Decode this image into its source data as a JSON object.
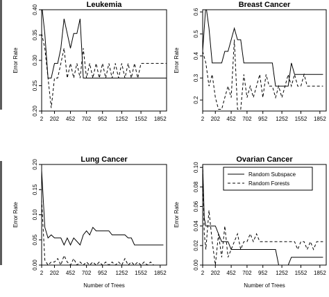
{
  "chart_data": [
    {
      "type": "line",
      "title": "Leukemia",
      "xlabel": "",
      "ylabel": "Error Rate",
      "xlim": [
        2,
        1952
      ],
      "ylim": [
        0.2,
        0.4
      ],
      "xticks": [
        2,
        202,
        452,
        702,
        952,
        1252,
        1552,
        1852
      ],
      "yticks": [
        0.2,
        0.25,
        0.3,
        0.35,
        0.4
      ],
      "ytick_labels": [
        "0.20",
        "0.25",
        "0.30",
        "0.35",
        "0.40"
      ],
      "series": [
        {
          "style": "solid",
          "points": [
            [
              2,
              0.412
            ],
            [
              52,
              0.352
            ],
            [
              102,
              0.265
            ],
            [
              152,
              0.265
            ],
            [
              202,
              0.294
            ],
            [
              252,
              0.294
            ],
            [
              302,
              0.324
            ],
            [
              352,
              0.382
            ],
            [
              402,
              0.353
            ],
            [
              452,
              0.324
            ],
            [
              502,
              0.353
            ],
            [
              552,
              0.353
            ],
            [
              602,
              0.382
            ],
            [
              652,
              0.265
            ],
            [
              702,
              0.265
            ],
            [
              1952,
              0.265
            ]
          ]
        },
        {
          "style": "dashed",
          "points": [
            [
              2,
              0.353
            ],
            [
              52,
              0.324
            ],
            [
              102,
              0.265
            ],
            [
              152,
              0.206
            ],
            [
              202,
              0.265
            ],
            [
              252,
              0.265
            ],
            [
              302,
              0.294
            ],
            [
              352,
              0.324
            ],
            [
              402,
              0.265
            ],
            [
              452,
              0.294
            ],
            [
              502,
              0.265
            ],
            [
              552,
              0.294
            ],
            [
              602,
              0.265
            ],
            [
              652,
              0.324
            ],
            [
              702,
              0.265
            ],
            [
              752,
              0.294
            ],
            [
              802,
              0.265
            ],
            [
              852,
              0.294
            ],
            [
              902,
              0.265
            ],
            [
              952,
              0.294
            ],
            [
              1002,
              0.265
            ],
            [
              1052,
              0.294
            ],
            [
              1102,
              0.265
            ],
            [
              1152,
              0.294
            ],
            [
              1202,
              0.265
            ],
            [
              1252,
              0.294
            ],
            [
              1302,
              0.265
            ],
            [
              1352,
              0.294
            ],
            [
              1402,
              0.265
            ],
            [
              1452,
              0.294
            ],
            [
              1502,
              0.265
            ],
            [
              1552,
              0.294
            ],
            [
              1602,
              0.294
            ],
            [
              1952,
              0.294
            ]
          ]
        }
      ]
    },
    {
      "type": "line",
      "title": "Breast Cancer",
      "xlabel": "",
      "ylabel": "Error Rate",
      "xlim": [
        2,
        1952
      ],
      "ylim": [
        0.15,
        0.61
      ],
      "xticks": [
        2,
        202,
        452,
        702,
        952,
        1252,
        1552,
        1852
      ],
      "yticks": [
        0.2,
        0.3,
        0.4,
        0.5,
        0.6
      ],
      "ytick_labels": [
        "0.2",
        "0.3",
        "0.4",
        "0.5",
        "0.6"
      ],
      "series": [
        {
          "style": "solid",
          "points": [
            [
              2,
              0.421
            ],
            [
              52,
              0.632
            ],
            [
              102,
              0.526
            ],
            [
              152,
              0.368
            ],
            [
              202,
              0.368
            ],
            [
              252,
              0.368
            ],
            [
              302,
              0.368
            ],
            [
              352,
              0.421
            ],
            [
              402,
              0.421
            ],
            [
              452,
              0.474
            ],
            [
              502,
              0.526
            ],
            [
              552,
              0.474
            ],
            [
              602,
              0.474
            ],
            [
              652,
              0.368
            ],
            [
              702,
              0.368
            ],
            [
              1052,
              0.368
            ],
            [
              1102,
              0.368
            ],
            [
              1152,
              0.263
            ],
            [
              1202,
              0.263
            ],
            [
              1252,
              0.263
            ],
            [
              1302,
              0.263
            ],
            [
              1352,
              0.263
            ],
            [
              1402,
              0.368
            ],
            [
              1452,
              0.316
            ],
            [
              1502,
              0.316
            ],
            [
              1902,
              0.316
            ]
          ]
        },
        {
          "style": "dashed",
          "points": [
            [
              2,
              0.421
            ],
            [
              52,
              0.368
            ],
            [
              102,
              0.263
            ],
            [
              152,
              0.316
            ],
            [
              202,
              0.211
            ],
            [
              252,
              0.158
            ],
            [
              302,
              0.158
            ],
            [
              352,
              0.211
            ],
            [
              402,
              0.263
            ],
            [
              452,
              0.211
            ],
            [
              502,
              0.474
            ],
            [
              552,
              0.158
            ],
            [
              602,
              0.158
            ],
            [
              652,
              0.316
            ],
            [
              702,
              0.211
            ],
            [
              752,
              0.263
            ],
            [
              802,
              0.211
            ],
            [
              852,
              0.263
            ],
            [
              902,
              0.316
            ],
            [
              952,
              0.211
            ],
            [
              1002,
              0.316
            ],
            [
              1052,
              0.263
            ],
            [
              1102,
              0.263
            ],
            [
              1152,
              0.211
            ],
            [
              1202,
              0.263
            ],
            [
              1252,
              0.211
            ],
            [
              1302,
              0.263
            ],
            [
              1352,
              0.316
            ],
            [
              1402,
              0.263
            ],
            [
              1452,
              0.316
            ],
            [
              1502,
              0.263
            ],
            [
              1552,
              0.263
            ],
            [
              1602,
              0.316
            ],
            [
              1652,
              0.263
            ],
            [
              1702,
              0.263
            ],
            [
              1902,
              0.263
            ]
          ]
        }
      ]
    },
    {
      "type": "line",
      "title": "Lung Cancer",
      "xlabel": "Number of Trees",
      "ylabel": "Error Rate",
      "xlim": [
        2,
        1952
      ],
      "ylim": [
        0,
        0.2
      ],
      "xticks": [
        2,
        202,
        452,
        702,
        952,
        1252,
        1552,
        1852
      ],
      "yticks": [
        0,
        0.05,
        0.1,
        0.15,
        0.2
      ],
      "ytick_labels": [
        "0.00",
        "0.05",
        "0.10",
        "0.15",
        "0.20"
      ],
      "series": [
        {
          "style": "solid",
          "points": [
            [
              2,
              0.188
            ],
            [
              52,
              0.075
            ],
            [
              102,
              0.054
            ],
            [
              152,
              0.06
            ],
            [
              202,
              0.054
            ],
            [
              252,
              0.054
            ],
            [
              302,
              0.054
            ],
            [
              352,
              0.04
            ],
            [
              402,
              0.054
            ],
            [
              452,
              0.04
            ],
            [
              502,
              0.054
            ],
            [
              552,
              0.047
            ],
            [
              602,
              0.04
            ],
            [
              652,
              0.06
            ],
            [
              702,
              0.068
            ],
            [
              752,
              0.06
            ],
            [
              802,
              0.075
            ],
            [
              852,
              0.068
            ],
            [
              902,
              0.068
            ],
            [
              1052,
              0.068
            ],
            [
              1102,
              0.06
            ],
            [
              1152,
              0.06
            ],
            [
              1302,
              0.06
            ],
            [
              1352,
              0.054
            ],
            [
              1402,
              0.054
            ],
            [
              1452,
              0.04
            ],
            [
              1502,
              0.04
            ],
            [
              1902,
              0.04
            ]
          ]
        },
        {
          "style": "dashed",
          "points": [
            [
              2,
              0.13
            ],
            [
              52,
              0.01
            ],
            [
              102,
              0
            ],
            [
              152,
              0.006
            ],
            [
              202,
              0.006
            ],
            [
              252,
              0.013
            ],
            [
              302,
              0
            ],
            [
              352,
              0.019
            ],
            [
              402,
              0.006
            ],
            [
              452,
              0
            ],
            [
              502,
              0.013
            ],
            [
              552,
              0
            ],
            [
              602,
              0.006
            ],
            [
              652,
              0
            ],
            [
              702,
              0.006
            ],
            [
              752,
              0
            ],
            [
              802,
              0.006
            ],
            [
              852,
              0
            ],
            [
              902,
              0.006
            ],
            [
              952,
              0
            ],
            [
              1002,
              0.006
            ],
            [
              1052,
              0
            ],
            [
              1102,
              0.006
            ],
            [
              1152,
              0
            ],
            [
              1202,
              0.006
            ],
            [
              1252,
              0
            ],
            [
              1302,
              0.013
            ],
            [
              1352,
              0
            ],
            [
              1402,
              0.006
            ],
            [
              1452,
              0
            ],
            [
              1502,
              0.006
            ],
            [
              1552,
              0
            ],
            [
              1602,
              0.006
            ],
            [
              1652,
              0
            ],
            [
              1702,
              0.006
            ],
            [
              1752,
              0
            ],
            [
              1902,
              0
            ]
          ]
        }
      ]
    },
    {
      "type": "line",
      "title": "Ovarian Cancer",
      "xlabel": "Number of Trees",
      "ylabel": "Error Rate",
      "xlim": [
        2,
        1952
      ],
      "ylim": [
        0,
        0.103
      ],
      "xticks": [
        2,
        202,
        452,
        702,
        952,
        1252,
        1552,
        1852
      ],
      "yticks": [
        0,
        0.02,
        0.04,
        0.06,
        0.08,
        0.1
      ],
      "ytick_labels": [
        "0.00",
        "0.02",
        "0.04",
        "0.06",
        "0.08",
        "0.10"
      ],
      "legend_position": "top-right",
      "series": [
        {
          "name": "Random Subspace",
          "style": "solid",
          "points": [
            [
              2,
              0.103
            ],
            [
              27,
              0.048
            ],
            [
              52,
              0.04
            ],
            [
              102,
              0.04
            ],
            [
              152,
              0.04
            ],
            [
              202,
              0.04
            ],
            [
              252,
              0.032
            ],
            [
              302,
              0.024
            ],
            [
              352,
              0.024
            ],
            [
              402,
              0.024
            ],
            [
              452,
              0.016
            ],
            [
              502,
              0.016
            ],
            [
              552,
              0.016
            ],
            [
              602,
              0.016
            ],
            [
              652,
              0.016
            ],
            [
              702,
              0.016
            ],
            [
              952,
              0.016
            ],
            [
              1002,
              0.016
            ],
            [
              1052,
              0.016
            ],
            [
              1102,
              0.016
            ],
            [
              1152,
              0.016
            ],
            [
              1202,
              0
            ],
            [
              1252,
              0
            ],
            [
              1302,
              0
            ],
            [
              1352,
              0
            ],
            [
              1402,
              0.008
            ],
            [
              1452,
              0.008
            ],
            [
              1902,
              0.008
            ]
          ]
        },
        {
          "name": "Random Forests",
          "style": "dashed",
          "points": [
            [
              2,
              0.103
            ],
            [
              27,
              0.032
            ],
            [
              52,
              0.016
            ],
            [
              102,
              0.056
            ],
            [
              152,
              0.024
            ],
            [
              202,
              0
            ],
            [
              252,
              0.032
            ],
            [
              302,
              0.008
            ],
            [
              352,
              0.04
            ],
            [
              402,
              0.008
            ],
            [
              452,
              0.016
            ],
            [
              502,
              0.024
            ],
            [
              552,
              0.032
            ],
            [
              602,
              0.016
            ],
            [
              652,
              0.024
            ],
            [
              702,
              0.024
            ],
            [
              752,
              0.032
            ],
            [
              802,
              0.024
            ],
            [
              852,
              0.032
            ],
            [
              902,
              0.024
            ],
            [
              952,
              0.024
            ],
            [
              1452,
              0.024
            ],
            [
              1502,
              0.016
            ],
            [
              1552,
              0.024
            ],
            [
              1602,
              0.024
            ],
            [
              1652,
              0.016
            ],
            [
              1702,
              0.024
            ],
            [
              1752,
              0.016
            ],
            [
              1802,
              0.024
            ],
            [
              1902,
              0.024
            ]
          ]
        }
      ]
    }
  ]
}
